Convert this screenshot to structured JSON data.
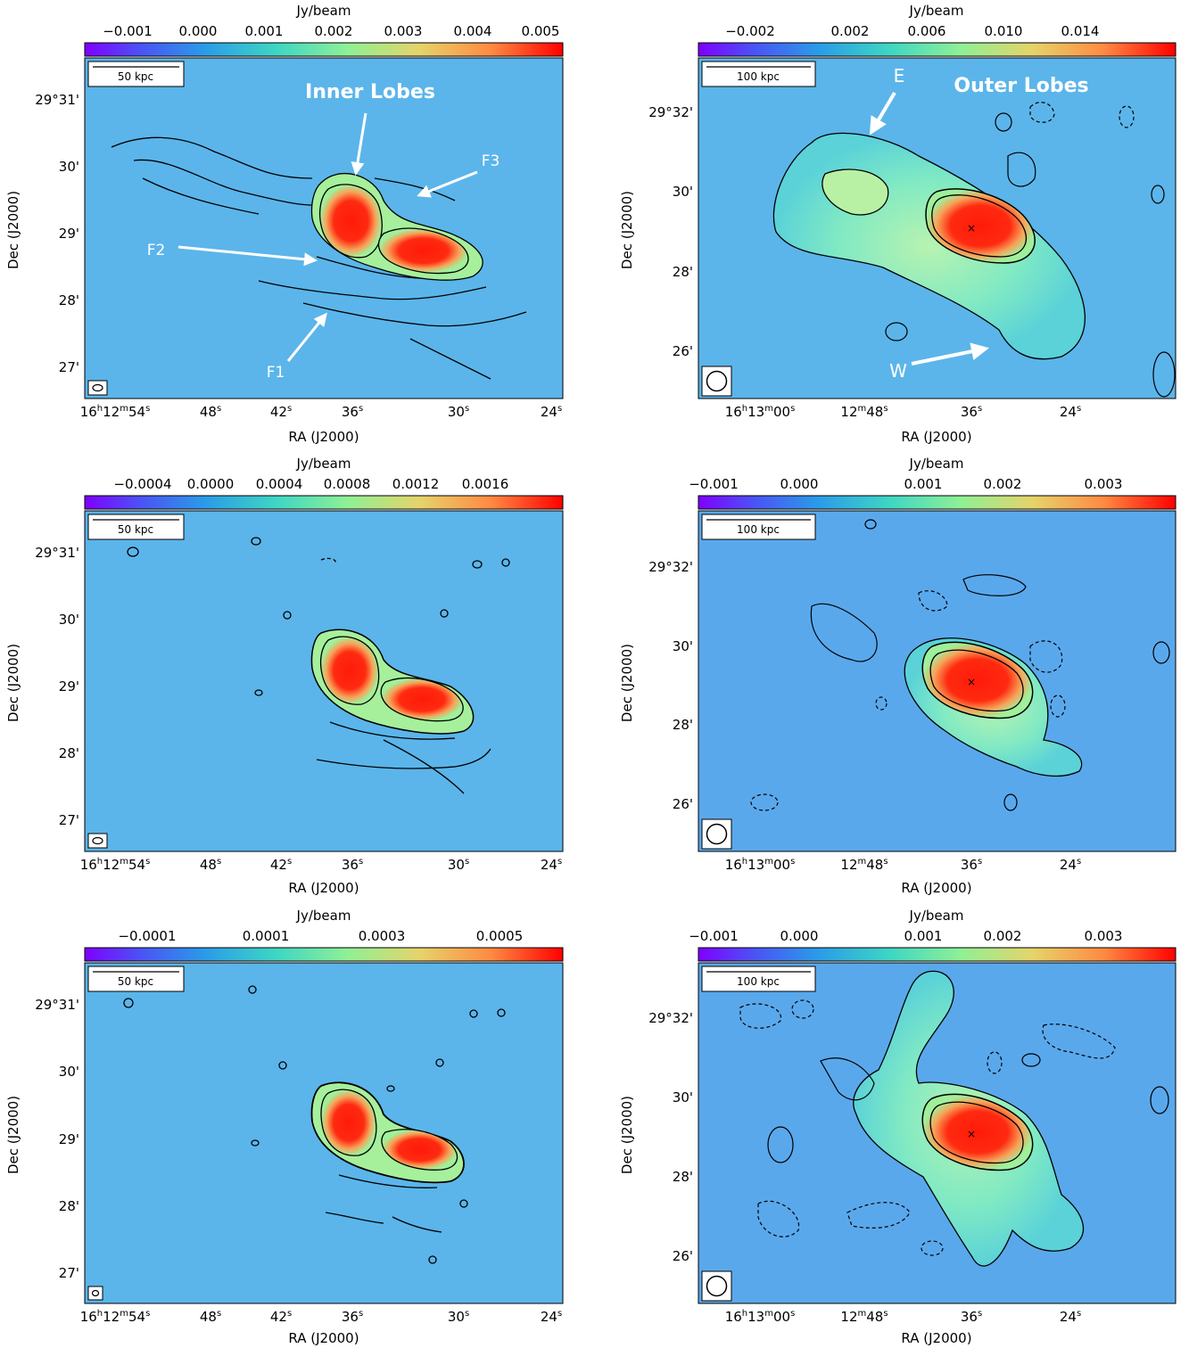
{
  "panels": [
    {
      "id": "p1",
      "colorbar_label": "Jy/beam",
      "colorbar_ticks": [
        "−0.001",
        "0.000",
        "0.001",
        "0.002",
        "0.003",
        "0.004",
        "0.005"
      ],
      "scalebar_label": "50 kpc",
      "ra_ticks": [
        {
          "h": "16",
          "m": "12",
          "s": "54"
        },
        {
          "s": "48"
        },
        {
          "s": "42"
        },
        {
          "s": "36"
        },
        {
          "s": "30"
        },
        {
          "s": "24"
        }
      ],
      "dec_ticks": [
        "29°31'",
        "30'",
        "29'",
        "28'",
        "27'"
      ],
      "xlabel": "RA (J2000)",
      "ylabel": "Dec (J2000)",
      "annotations": {
        "title": "Inner Lobes",
        "f1": "F1",
        "f2": "F2",
        "f3": "F3"
      },
      "beam": "ellipse"
    },
    {
      "id": "p2",
      "colorbar_label": "Jy/beam",
      "colorbar_ticks": [
        "−0.002",
        "0.002",
        "0.006",
        "0.010",
        "0.014"
      ],
      "scalebar_label": "100 kpc",
      "ra_ticks": [
        {
          "h": "16",
          "m": "13",
          "s": "00"
        },
        {
          "m": "12",
          "s": "48"
        },
        {
          "s": "36"
        },
        {
          "s": "24"
        }
      ],
      "dec_ticks": [
        "29°32'",
        "30'",
        "28'",
        "26'"
      ],
      "xlabel": "RA (J2000)",
      "ylabel": "Dec (J2000)",
      "annotations": {
        "title": "Outer Lobes",
        "e": "E",
        "w": "W"
      },
      "beam": "circle"
    },
    {
      "id": "p3",
      "colorbar_label": "Jy/beam",
      "colorbar_ticks": [
        "−0.0004",
        "0.0000",
        "0.0004",
        "0.0008",
        "0.0012",
        "0.0016"
      ],
      "scalebar_label": "50 kpc",
      "ra_ticks": [
        {
          "h": "16",
          "m": "12",
          "s": "54"
        },
        {
          "s": "48"
        },
        {
          "s": "42"
        },
        {
          "s": "36"
        },
        {
          "s": "30"
        },
        {
          "s": "24"
        }
      ],
      "dec_ticks": [
        "29°31'",
        "30'",
        "29'",
        "28'",
        "27'"
      ],
      "xlabel": "RA (J2000)",
      "ylabel": "Dec (J2000)",
      "beam": "ellipse"
    },
    {
      "id": "p4",
      "colorbar_label": "Jy/beam",
      "colorbar_ticks": [
        "−0.001",
        "0.000",
        "0.001",
        "0.002",
        "0.003"
      ],
      "scalebar_label": "100 kpc",
      "ra_ticks": [
        {
          "h": "16",
          "m": "13",
          "s": "00"
        },
        {
          "m": "12",
          "s": "48"
        },
        {
          "s": "36"
        },
        {
          "s": "24"
        }
      ],
      "dec_ticks": [
        "29°32'",
        "30'",
        "28'",
        "26'"
      ],
      "xlabel": "RA (J2000)",
      "ylabel": "Dec (J2000)",
      "beam": "circle"
    },
    {
      "id": "p5",
      "colorbar_label": "Jy/beam",
      "colorbar_ticks": [
        "−0.0001",
        "0.0001",
        "0.0003",
        "0.0005"
      ],
      "scalebar_label": "50 kpc",
      "ra_ticks": [
        {
          "h": "16",
          "m": "12",
          "s": "54"
        },
        {
          "s": "48"
        },
        {
          "s": "42"
        },
        {
          "s": "36"
        },
        {
          "s": "30"
        },
        {
          "s": "24"
        }
      ],
      "dec_ticks": [
        "29°31'",
        "30'",
        "29'",
        "28'",
        "27'"
      ],
      "xlabel": "RA (J2000)",
      "ylabel": "Dec (J2000)",
      "beam": "ellipse"
    },
    {
      "id": "p6",
      "colorbar_label": "Jy/beam",
      "colorbar_ticks": [
        "−0.001",
        "0.000",
        "0.001",
        "0.002",
        "0.003"
      ],
      "scalebar_label": "100 kpc",
      "ra_ticks": [
        {
          "h": "16",
          "m": "13",
          "s": "00"
        },
        {
          "m": "12",
          "s": "48"
        },
        {
          "s": "36"
        },
        {
          "s": "24"
        }
      ],
      "dec_ticks": [
        "29°32'",
        "30'",
        "28'",
        "26'"
      ],
      "xlabel": "RA (J2000)",
      "ylabel": "Dec (J2000)",
      "beam": "circle"
    }
  ],
  "colors": {
    "background": "#5bb5ea",
    "text": "#000000",
    "annotation": "#ffffff",
    "contour": "#000000"
  }
}
